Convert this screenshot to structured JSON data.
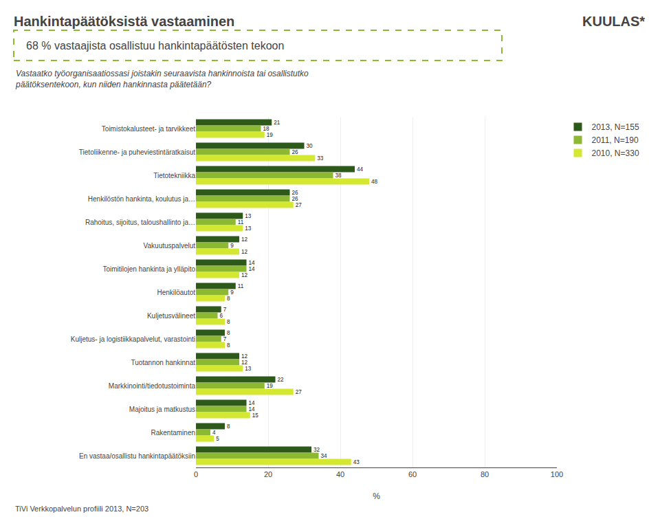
{
  "chart_data": {
    "type": "bar",
    "orientation": "horizontal",
    "title": "Hankintapäätöksistä vastaaminen",
    "subtitle": [
      "Vastaatko työorganisaatiossasi joistakin seuraavista hankinnoista tai osallistutko",
      "päätöksentekoon, kun niiden hankinnasta päätetään?"
    ],
    "annotations": [
      "68 % vastaajista osallistuu hankintapäätösten tekoon",
      "TiVi Verkkopalvelun profiili 2013, N=203",
      "KUULAS*"
    ],
    "x_label": "%",
    "categories": [
      "Toimistokalusteet- ja tarvikkeet",
      "Tietoliikenne- ja puheviestintäratkaisut",
      "Tietotekniikka",
      "Henkilöstön hankinta, koulutus ja…",
      "Rahoitus, sijoitus, taloushallinto ja…",
      "Vakuutuspalvelut",
      "Toimitilojen hankinta ja ylläpito",
      "Henkilöautot",
      "Kuljetusvälineet",
      "Kuljetus- ja logistiikkapalvelut, varastointi",
      "Tuotannon hankinnat",
      "Markkinointi/tiedotustoiminta",
      "Majoitus ja matkustus",
      "Rakentaminen",
      "En vastaa/osallistu hankintapäätöksiin"
    ],
    "series": [
      {
        "name": "2013, N=155",
        "color": "#2d5a1b",
        "values": [
          21,
          30,
          44,
          26,
          13,
          12,
          14,
          11,
          7,
          8,
          12,
          22,
          14,
          8,
          32
        ]
      },
      {
        "name": "2011, N=190",
        "color": "#8db832",
        "values": [
          18,
          26,
          38,
          26,
          11,
          9,
          14,
          9,
          6,
          7,
          12,
          19,
          14,
          4,
          34
        ]
      },
      {
        "name": "2010, N=330",
        "color": "#d4e832",
        "values": [
          19,
          33,
          48,
          27,
          13,
          12,
          12,
          8,
          8,
          8,
          13,
          27,
          15,
          5,
          43
        ]
      }
    ],
    "xlim": [
      0,
      100
    ],
    "xticks": [
      0,
      20,
      40,
      60,
      80,
      100
    ],
    "grid": true,
    "legend": "right",
    "data_labels": true
  }
}
